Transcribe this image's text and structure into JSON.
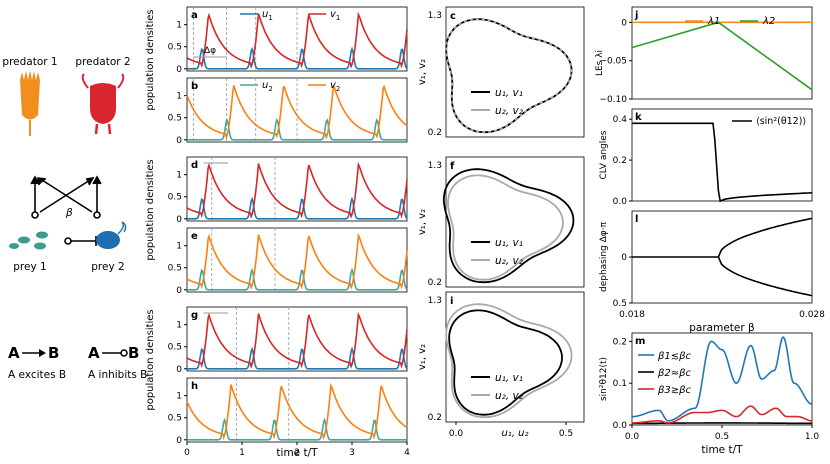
{
  "diagram": {
    "predator1_label": "predator 1",
    "predator2_label": "predator 2",
    "prey1_label": "prey 1",
    "prey2_label": "prey 2",
    "beta_label": "β",
    "legend_excites_a": "A",
    "legend_excites_b": "B",
    "legend_excites_caption": "A excites B",
    "legend_inhibits_a": "A",
    "legend_inhibits_b": "B",
    "legend_inhibits_caption": "A inhibits B",
    "colors": {
      "predator1": "#f28e1e",
      "predator2": "#d9262e",
      "prey1": "#3a9b93",
      "prey2": "#1f6fb0"
    }
  },
  "time_series_panels": {
    "ylabel": "population densities",
    "xlabel": "time t/T",
    "xticks": [
      "0",
      "1",
      "2",
      "3",
      "4"
    ],
    "dphi_label": "Δφ",
    "groups": [
      {
        "top": "a",
        "bottom": "b",
        "legend1": [
          "u1",
          "v1"
        ],
        "legend2": [
          "u2",
          "v2"
        ],
        "phase_shift": 0.5
      },
      {
        "top": "d",
        "bottom": "e",
        "legend1": [],
        "legend2": [],
        "phase_shift": 0.0
      },
      {
        "top": "g",
        "bottom": "h",
        "legend1": [],
        "legend2": [],
        "phase_shift": 0.45
      }
    ]
  },
  "legend_items": {
    "u1": "u",
    "u1_sub": "1",
    "v1": "v",
    "v1_sub": "1",
    "u2": "u",
    "u2_sub": "2",
    "v2": "v",
    "v2_sub": "2"
  },
  "phase_panels": {
    "ylabel": "v1, v2",
    "xlabel": "u1, u2",
    "xticks": [
      "0.0",
      "0.5"
    ],
    "yticks": [
      "1.3",
      "0.2"
    ],
    "legend": [
      "u1, v1",
      "u2, v2"
    ],
    "labels": [
      "c",
      "f",
      "i"
    ]
  },
  "chart_data": [
    {
      "type": "line",
      "panel": "j",
      "ylabel": "LEs λi",
      "xlim": [
        0.018,
        0.028
      ],
      "ylim": [
        -0.1,
        0.02
      ],
      "yticks": [
        "0",
        "-0.05",
        "-0.10"
      ],
      "series": [
        {
          "name": "λ1",
          "color": "#f28e1e",
          "x": [
            0.018,
            0.028
          ],
          "y": [
            0,
            0
          ]
        },
        {
          "name": "λ2",
          "color": "#2ca02c",
          "x": [
            0.018,
            0.0228,
            0.028
          ],
          "y": [
            -0.033,
            0,
            -0.088
          ]
        }
      ]
    },
    {
      "type": "line",
      "panel": "k",
      "ylabel": "CLV angles",
      "yticks": [
        "0.4",
        "0.2",
        "0.0"
      ],
      "ylim": [
        0,
        0.45
      ],
      "series": [
        {
          "name": "⟨sin²(θ12)⟩",
          "color": "#000000",
          "x": [
            0.018,
            0.0225,
            0.0228,
            0.028
          ],
          "y": [
            0.38,
            0.38,
            0.0,
            0.04
          ]
        }
      ]
    },
    {
      "type": "line",
      "panel": "l",
      "ylabel": "dephasing Δφ·π",
      "xlabel": "parameter β",
      "xticks": [
        "0.018",
        "0.028"
      ],
      "yticks": [
        "0",
        "0.5"
      ],
      "ylim": [
        -0.5,
        0.5
      ],
      "bifurcation_beta": 0.0228,
      "series": [
        {
          "name": "dephasing",
          "color": "#000000",
          "x": [
            0.018,
            0.0228,
            0.028
          ],
          "y": [
            0,
            0,
            0.42
          ]
        }
      ]
    },
    {
      "type": "line",
      "panel": "m",
      "ylabel": "sin²θ12(t)",
      "xlabel": "time t/T",
      "xticks": [
        "0.0",
        "0.5",
        "1.0"
      ],
      "yticks": [
        "0.2",
        "0.1",
        "0.0"
      ],
      "ylim": [
        0,
        0.22
      ],
      "series": [
        {
          "name": "β1≲βc",
          "color": "#1f77b4",
          "x": [
            0.0,
            0.15,
            0.2,
            0.35,
            0.44,
            0.5,
            0.58,
            0.66,
            0.72,
            0.79,
            0.84,
            0.9,
            1.0
          ],
          "y": [
            0.02,
            0.035,
            0.01,
            0.04,
            0.2,
            0.18,
            0.1,
            0.19,
            0.11,
            0.13,
            0.21,
            0.1,
            0.05
          ]
        },
        {
          "name": "β2≈βc",
          "color": "#000000",
          "x": [
            0.0,
            0.5,
            1.0
          ],
          "y": [
            0.004,
            0.005,
            0.004
          ]
        },
        {
          "name": "β3≳βc",
          "color": "#d62728",
          "x": [
            0.0,
            0.15,
            0.2,
            0.35,
            0.42,
            0.5,
            0.58,
            0.66,
            0.72,
            0.8,
            0.86,
            0.92,
            1.0
          ],
          "y": [
            0.005,
            0.01,
            0.005,
            0.03,
            0.03,
            0.035,
            0.02,
            0.045,
            0.025,
            0.04,
            0.02,
            0.02,
            0.01
          ]
        }
      ]
    }
  ],
  "right_panel_labels": {
    "j": "j",
    "k": "k",
    "l": "l",
    "m": "m",
    "lambda1": "λ1",
    "lambda2": "λ2",
    "clv_legend": "⟨sin²(θ12)⟩",
    "beta1": "β1≲βc",
    "beta2": "β2≈βc",
    "beta3": "β3≳βc"
  }
}
